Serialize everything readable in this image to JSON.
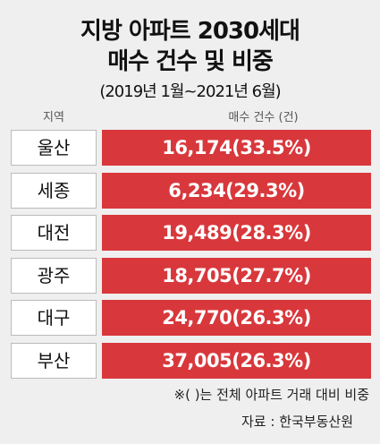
{
  "title": [
    "지방 아파트 2030세대",
    "매수 건수 및 비중"
  ],
  "subtitle": "(2019년 1월~2021년 6월)",
  "table": {
    "headers": [
      "지역",
      "매수 건수 (건)"
    ],
    "rows": [
      [
        "울산",
        "16,174(33.5%)"
      ],
      [
        "세종",
        "6,234(29.3%)"
      ],
      [
        "대전",
        "19,489(28.3%)"
      ],
      [
        "광주",
        "18,705(27.7%)"
      ],
      [
        "대구",
        "24,770(26.3%)"
      ],
      [
        "부산",
        "37,005(26.3%)"
      ]
    ]
  },
  "note": "※( )는 전체 아파트 거래 대비 비중",
  "source": "자료 : 한국부동산원"
}
